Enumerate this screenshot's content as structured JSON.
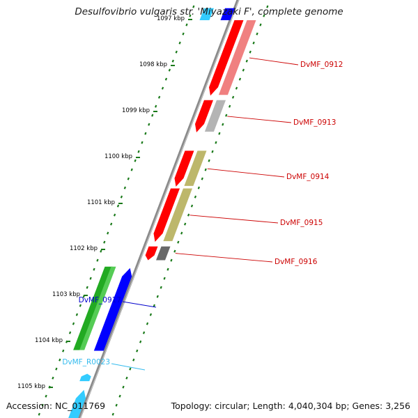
{
  "title": "Desulfovibrio vulgaris str. 'Miyazaki F', complete genome",
  "accession": "Accession: NC_011769",
  "summary": "Topology: circular; Length: 4,040,304 bp; Genes: 3,256",
  "scale": {
    "start_kbp": 1097,
    "ticks": [
      "1097 kbp",
      "1098 kbp",
      "1099 kbp",
      "1100 kbp",
      "1101 kbp",
      "1102 kbp",
      "1103 kbp",
      "1104 kbp",
      "1105 kbp"
    ]
  },
  "genes": [
    {
      "label": "DvMF_0912",
      "strand": "+",
      "start_kbp": 1097.06,
      "end_kbp": 1098.7,
      "color": "#ff0000",
      "partner_color": "#f08080"
    },
    {
      "label": "DvMF_0913",
      "strand": "+",
      "start_kbp": 1098.8,
      "end_kbp": 1099.5,
      "color": "#ff0000",
      "partner_color": "#b4b4b4"
    },
    {
      "label": "DvMF_0914",
      "strand": "+",
      "start_kbp": 1099.9,
      "end_kbp": 1100.68,
      "color": "#ff0000",
      "partner_color": "#bdb76b"
    },
    {
      "label": "DvMF_0915",
      "strand": "+",
      "start_kbp": 1100.72,
      "end_kbp": 1101.88,
      "color": "#ff0000",
      "partner_color": "#bdb76b"
    },
    {
      "label": "DvMF_0916",
      "strand": "+",
      "start_kbp": 1101.98,
      "end_kbp": 1102.28,
      "color": "#ff0000",
      "partner_color": "#696969"
    },
    {
      "label": "DvMF_0917",
      "strand": "-",
      "start_kbp": 1102.45,
      "end_kbp": 1104.25,
      "color": "#0000ff",
      "partner_color": "#22aa22"
    },
    {
      "label": "DvMF_R0023",
      "strand": "-",
      "start_kbp": 1104.75,
      "end_kbp": 1104.88,
      "color": "#33ccff",
      "partner_color": ""
    }
  ],
  "partial_genes": [
    {
      "strand": "-",
      "start_kbp": 1096.8,
      "end_kbp": 1097.06,
      "color": "#0000ff"
    },
    {
      "strand": "-",
      "start_kbp": 1096.8,
      "end_kbp": 1097.06,
      "color": "#33ccff"
    },
    {
      "strand": "-",
      "start_kbp": 1105.1,
      "end_kbp": 1105.8,
      "color": "#33ccff"
    }
  ],
  "colors": {
    "backbone": "#8a8a8a",
    "tick": "#1a7a1a",
    "plus_label": "#cc0000",
    "minus_label": "#0000cc",
    "rna_label": "#33bbee"
  }
}
